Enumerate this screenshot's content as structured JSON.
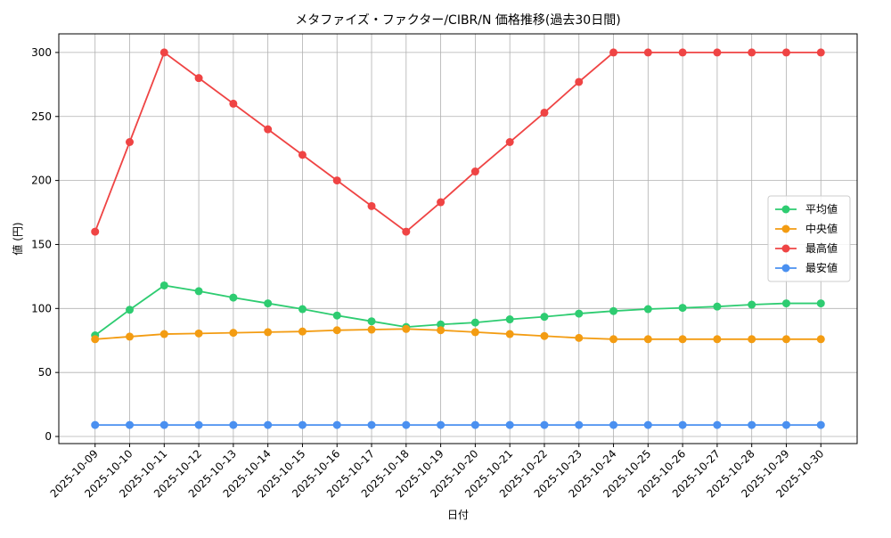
{
  "chart_data": {
    "type": "line",
    "title": "メタファイズ・ファクター/CIBR/N 価格推移(過去30日間)",
    "x_label": "日付",
    "y_label": "値 (円)",
    "categories": [
      "2025-10-09",
      "2025-10-10",
      "2025-10-11",
      "2025-10-12",
      "2025-10-13",
      "2025-10-14",
      "2025-10-15",
      "2025-10-16",
      "2025-10-17",
      "2025-10-18",
      "2025-10-19",
      "2025-10-20",
      "2025-10-21",
      "2025-10-22",
      "2025-10-23",
      "2025-10-24",
      "2025-10-25",
      "2025-10-26",
      "2025-10-27",
      "2025-10-28",
      "2025-10-29",
      "2025-10-30"
    ],
    "series": [
      {
        "name": "平均値",
        "color": "#2ecc71",
        "values": [
          79,
          99,
          118,
          113.5,
          108.5,
          104,
          99.5,
          94.5,
          90,
          85.5,
          87.5,
          89,
          91.5,
          93.5,
          96,
          98,
          99.5,
          100.5,
          101.5,
          103,
          104,
          104
        ]
      },
      {
        "name": "中央値",
        "color": "#f39c12",
        "values": [
          76,
          78,
          80,
          80.5,
          81,
          81.5,
          82,
          83,
          83.5,
          84,
          83,
          81.5,
          80,
          78.5,
          77,
          76,
          76,
          76,
          76,
          76,
          76,
          76
        ]
      },
      {
        "name": "最高値",
        "color": "#ef4444",
        "values": [
          160,
          230,
          300,
          280,
          260,
          240,
          220,
          200,
          180,
          160,
          183,
          207,
          230,
          253,
          277,
          300,
          300,
          300,
          300,
          300,
          300,
          300
        ]
      },
      {
        "name": "最安値",
        "color": "#4a90f0",
        "values": [
          9,
          9,
          9,
          9,
          9,
          9,
          9,
          9,
          9,
          9,
          9,
          9,
          9,
          9,
          9,
          9,
          9,
          9,
          9,
          9,
          9,
          9
        ]
      }
    ],
    "ylim": [
      -5.55,
      314.55
    ],
    "yticks": [
      0,
      50,
      100,
      150,
      200,
      250,
      300
    ],
    "grid": true,
    "legend": "center right"
  }
}
